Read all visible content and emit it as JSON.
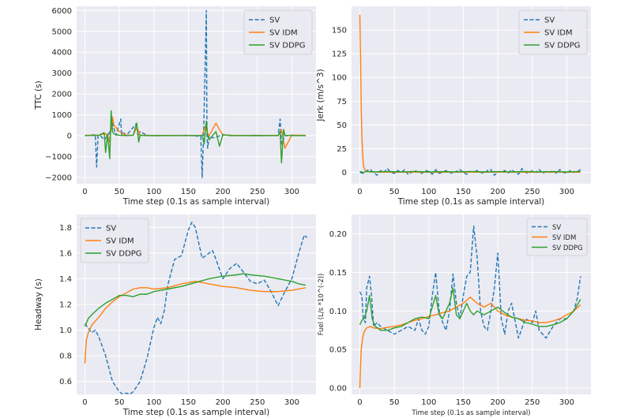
{
  "chart_data": [
    {
      "type": "line",
      "xlabel": "Time step (0.1s as sample interval)",
      "ylabel": "TTC (s)",
      "xlim": [
        -12,
        335
      ],
      "ylim": [
        -2300,
        6200
      ],
      "xticks": [
        0,
        50,
        100,
        150,
        200,
        250,
        300
      ],
      "yticks": [
        -2000,
        -1000,
        0,
        1000,
        2000,
        3000,
        4000,
        5000,
        6000
      ],
      "ytick_labels": [
        "−2000",
        "−1000",
        "0",
        "1000",
        "2000",
        "3000",
        "4000",
        "5000",
        "6000"
      ],
      "grid": true,
      "legend": "top-right",
      "series": [
        {
          "name": "SV",
          "style": "dashed",
          "color": "#1f77b4",
          "x": [
            0,
            15,
            17,
            19,
            22,
            28,
            35,
            40,
            45,
            52,
            53,
            55,
            60,
            75,
            77,
            80,
            90,
            100,
            120,
            150,
            168,
            170,
            172,
            176,
            177,
            178,
            180,
            185,
            200,
            220,
            250,
            280,
            283,
            285,
            290,
            300,
            320
          ],
          "y": [
            0,
            50,
            -1500,
            0,
            30,
            -200,
            100,
            600,
            20,
            800,
            0,
            200,
            10,
            600,
            -50,
            200,
            20,
            10,
            15,
            20,
            -30,
            -2000,
            0,
            6000,
            0,
            -600,
            0,
            -100,
            40,
            10,
            20,
            10,
            800,
            -400,
            0,
            20,
            10
          ]
        },
        {
          "name": "SV IDM",
          "style": "solid",
          "color": "#ff7f0e",
          "x": [
            0,
            20,
            30,
            35,
            38,
            40,
            42,
            45,
            50,
            55,
            60,
            70,
            75,
            78,
            80,
            90,
            100,
            130,
            160,
            170,
            175,
            178,
            180,
            185,
            190,
            195,
            200,
            210,
            250,
            280,
            285,
            290,
            300,
            320
          ],
          "y": [
            20,
            30,
            100,
            -300,
            300,
            900,
            500,
            400,
            200,
            100,
            30,
            20,
            400,
            200,
            30,
            20,
            10,
            15,
            10,
            20,
            500,
            100,
            0,
            300,
            600,
            300,
            50,
            20,
            10,
            20,
            300,
            -600,
            30,
            20
          ]
        },
        {
          "name": "SV DDPG",
          "style": "solid",
          "color": "#2ca02c",
          "x": [
            0,
            20,
            28,
            30,
            33,
            36,
            38,
            40,
            42,
            45,
            50,
            60,
            70,
            75,
            78,
            80,
            90,
            100,
            150,
            165,
            170,
            173,
            176,
            178,
            180,
            185,
            190,
            195,
            200,
            210,
            250,
            280,
            283,
            285,
            288,
            290,
            300,
            320
          ],
          "y": [
            10,
            20,
            150,
            -800,
            100,
            -1100,
            1200,
            200,
            100,
            50,
            20,
            10,
            20,
            600,
            -300,
            20,
            10,
            5,
            10,
            10,
            20,
            -400,
            700,
            0,
            -200,
            10,
            200,
            -500,
            50,
            10,
            5,
            10,
            200,
            -1300,
            300,
            20,
            10,
            5
          ]
        }
      ]
    },
    {
      "type": "line",
      "xlabel": "Time step (0.1s as sample interval)",
      "ylabel": "Jerk (m/s^3)",
      "xlim": [
        -12,
        335
      ],
      "ylim": [
        -12,
        175
      ],
      "xticks": [
        0,
        50,
        100,
        150,
        200,
        250,
        300
      ],
      "yticks": [
        0,
        25,
        50,
        75,
        100,
        125,
        150
      ],
      "grid": true,
      "legend": "top-right",
      "series": [
        {
          "name": "SV",
          "style": "dashed",
          "color": "#1f77b4",
          "x": [
            0,
            5,
            10,
            15,
            20,
            25,
            30,
            35,
            40,
            45,
            50,
            55,
            60,
            65,
            70,
            75,
            80,
            85,
            90,
            95,
            100,
            105,
            110,
            115,
            120,
            125,
            130,
            135,
            140,
            145,
            150,
            155,
            160,
            165,
            170,
            175,
            180,
            185,
            190,
            195,
            200,
            205,
            210,
            215,
            220,
            225,
            230,
            235,
            240,
            245,
            250,
            255,
            260,
            265,
            270,
            275,
            280,
            285,
            290,
            295,
            300,
            305,
            310,
            315,
            320
          ],
          "y": [
            0,
            -1,
            2,
            3,
            0,
            -3,
            2,
            0,
            4,
            0,
            -1,
            2,
            0,
            3,
            -2,
            0,
            2,
            0,
            -1,
            2,
            1,
            -2,
            3,
            -1,
            0,
            2,
            0,
            -1,
            1,
            3,
            0,
            -2,
            1,
            0,
            2,
            0,
            -1,
            2,
            3,
            -3,
            0,
            1,
            2,
            -1,
            3,
            0,
            -2,
            4,
            0,
            -1,
            2,
            0,
            3,
            -1,
            1,
            0,
            2,
            -1,
            3,
            0,
            -1,
            2,
            0,
            1,
            3
          ]
        },
        {
          "name": "SV IDM",
          "style": "solid",
          "color": "#ff7f0e",
          "x": [
            0,
            1,
            2,
            3,
            4,
            5,
            6,
            8,
            10,
            15,
            20,
            50,
            100,
            150,
            200,
            250,
            300,
            320
          ],
          "y": [
            166,
            120,
            70,
            38,
            20,
            10,
            5,
            2,
            1,
            0.5,
            0.3,
            0.2,
            0.2,
            0.2,
            0.2,
            0.2,
            0.2,
            0.2
          ]
        },
        {
          "name": "SV DDPG",
          "style": "solid",
          "color": "#2ca02c",
          "x": [
            0,
            5,
            10,
            20,
            40,
            60,
            80,
            100,
            120,
            140,
            160,
            180,
            200,
            220,
            240,
            260,
            280,
            300,
            320
          ],
          "y": [
            1,
            0,
            1,
            0.5,
            1,
            0.5,
            1,
            0.5,
            0.8,
            0.5,
            1,
            0.5,
            0.8,
            0.5,
            1,
            0.5,
            0.8,
            0.5,
            1
          ]
        }
      ]
    },
    {
      "type": "line",
      "xlabel": "Time step (0.1s as sample interval)",
      "ylabel": "Headway (s)",
      "xlim": [
        -12,
        335
      ],
      "ylim": [
        0.5,
        1.9
      ],
      "xticks": [
        0,
        50,
        100,
        150,
        200,
        250,
        300
      ],
      "yticks": [
        0.6,
        0.8,
        1.0,
        1.2,
        1.4,
        1.6,
        1.8
      ],
      "ytick_labels": [
        "0.6",
        "0.8",
        "1.0",
        "1.2",
        "1.4",
        "1.6",
        "1.8"
      ],
      "grid": true,
      "legend": "top-left",
      "series": [
        {
          "name": "SV",
          "style": "dashed",
          "color": "#1f77b4",
          "x": [
            0,
            10,
            15,
            20,
            30,
            40,
            50,
            55,
            60,
            65,
            70,
            80,
            90,
            100,
            105,
            110,
            115,
            120,
            130,
            140,
            150,
            155,
            160,
            170,
            180,
            185,
            190,
            200,
            210,
            220,
            230,
            240,
            250,
            260,
            270,
            280,
            290,
            300,
            310,
            318,
            322
          ],
          "y": [
            1.05,
            0.98,
            1.0,
            0.95,
            0.8,
            0.6,
            0.52,
            0.5,
            0.51,
            0.5,
            0.52,
            0.6,
            0.78,
            1.02,
            1.1,
            1.05,
            1.15,
            1.35,
            1.55,
            1.58,
            1.78,
            1.84,
            1.8,
            1.56,
            1.6,
            1.62,
            1.55,
            1.4,
            1.48,
            1.52,
            1.45,
            1.38,
            1.36,
            1.39,
            1.3,
            1.19,
            1.3,
            1.4,
            1.6,
            1.74,
            1.72
          ]
        },
        {
          "name": "SV IDM",
          "style": "solid",
          "color": "#ff7f0e",
          "x": [
            0,
            2,
            5,
            10,
            20,
            30,
            40,
            50,
            60,
            70,
            80,
            90,
            100,
            120,
            140,
            160,
            180,
            200,
            220,
            240,
            260,
            280,
            300,
            320
          ],
          "y": [
            0.74,
            0.92,
            0.98,
            1.04,
            1.1,
            1.17,
            1.22,
            1.26,
            1.29,
            1.32,
            1.33,
            1.33,
            1.32,
            1.33,
            1.36,
            1.38,
            1.36,
            1.34,
            1.33,
            1.31,
            1.3,
            1.3,
            1.31,
            1.33
          ]
        },
        {
          "name": "SV DDPG",
          "style": "solid",
          "color": "#2ca02c",
          "x": [
            0,
            5,
            10,
            20,
            30,
            40,
            50,
            60,
            70,
            80,
            90,
            100,
            120,
            140,
            160,
            180,
            200,
            220,
            230,
            240,
            260,
            280,
            300,
            310,
            320
          ],
          "y": [
            1.03,
            1.09,
            1.12,
            1.17,
            1.21,
            1.24,
            1.27,
            1.27,
            1.26,
            1.28,
            1.28,
            1.3,
            1.32,
            1.34,
            1.37,
            1.4,
            1.42,
            1.43,
            1.44,
            1.43,
            1.42,
            1.4,
            1.38,
            1.36,
            1.35
          ]
        }
      ]
    },
    {
      "type": "line",
      "xlabel": "Time step (0.1s as sample interval)",
      "ylabel": "Fuel (L/s *10^(-2))",
      "xlim": [
        -12,
        335
      ],
      "ylim": [
        -0.008,
        0.225
      ],
      "xticks": [
        0,
        50,
        100,
        150,
        200,
        250,
        300
      ],
      "yticks": [
        0.0,
        0.05,
        0.1,
        0.15,
        0.2
      ],
      "ytick_labels": [
        "0.00",
        "0.05",
        "0.10",
        "0.15",
        "0.20"
      ],
      "grid": true,
      "legend": "top-right",
      "series": [
        {
          "name": "SV",
          "style": "dashed",
          "color": "#1f77b4",
          "x": [
            0,
            3,
            5,
            8,
            10,
            14,
            17,
            20,
            25,
            30,
            40,
            50,
            60,
            70,
            80,
            85,
            90,
            95,
            100,
            105,
            110,
            115,
            120,
            125,
            130,
            135,
            140,
            145,
            150,
            155,
            160,
            165,
            170,
            175,
            180,
            185,
            190,
            195,
            200,
            205,
            210,
            215,
            220,
            230,
            240,
            250,
            255,
            260,
            270,
            280,
            290,
            300,
            310,
            315,
            320
          ],
          "y": [
            0.125,
            0.12,
            0.09,
            0.085,
            0.13,
            0.145,
            0.12,
            0.08,
            0.085,
            0.08,
            0.075,
            0.07,
            0.075,
            0.08,
            0.075,
            0.09,
            0.075,
            0.07,
            0.08,
            0.12,
            0.15,
            0.1,
            0.085,
            0.075,
            0.1,
            0.148,
            0.11,
            0.09,
            0.12,
            0.145,
            0.15,
            0.21,
            0.17,
            0.1,
            0.08,
            0.075,
            0.1,
            0.13,
            0.175,
            0.09,
            0.07,
            0.1,
            0.11,
            0.065,
            0.09,
            0.085,
            0.1,
            0.075,
            0.065,
            0.08,
            0.09,
            0.09,
            0.1,
            0.115,
            0.145
          ]
        },
        {
          "name": "SV IDM",
          "style": "solid",
          "color": "#ff7f0e",
          "x": [
            0,
            1,
            2,
            4,
            6,
            8,
            10,
            15,
            20,
            30,
            40,
            50,
            60,
            70,
            80,
            90,
            100,
            110,
            120,
            130,
            140,
            150,
            160,
            170,
            180,
            190,
            200,
            210,
            220,
            230,
            240,
            250,
            260,
            270,
            280,
            290,
            300,
            310,
            320
          ],
          "y": [
            0.0,
            0.03,
            0.05,
            0.065,
            0.072,
            0.076,
            0.078,
            0.08,
            0.078,
            0.077,
            0.079,
            0.08,
            0.082,
            0.085,
            0.088,
            0.09,
            0.093,
            0.095,
            0.098,
            0.1,
            0.105,
            0.11,
            0.118,
            0.11,
            0.105,
            0.11,
            0.1,
            0.095,
            0.092,
            0.09,
            0.088,
            0.087,
            0.085,
            0.085,
            0.087,
            0.09,
            0.095,
            0.1,
            0.108
          ]
        },
        {
          "name": "SV DDPG",
          "style": "solid",
          "color": "#2ca02c",
          "x": [
            0,
            3,
            6,
            10,
            14,
            18,
            22,
            26,
            30,
            40,
            50,
            60,
            70,
            80,
            90,
            100,
            110,
            115,
            120,
            125,
            130,
            135,
            140,
            145,
            150,
            155,
            160,
            165,
            170,
            180,
            190,
            200,
            210,
            220,
            230,
            240,
            250,
            260,
            270,
            280,
            290,
            300,
            310,
            320
          ],
          "y": [
            0.082,
            0.088,
            0.09,
            0.1,
            0.12,
            0.09,
            0.08,
            0.078,
            0.075,
            0.075,
            0.078,
            0.08,
            0.085,
            0.09,
            0.092,
            0.09,
            0.12,
            0.095,
            0.09,
            0.1,
            0.11,
            0.13,
            0.095,
            0.09,
            0.1,
            0.11,
            0.1,
            0.095,
            0.1,
            0.095,
            0.1,
            0.105,
            0.098,
            0.092,
            0.09,
            0.085,
            0.083,
            0.08,
            0.08,
            0.082,
            0.085,
            0.09,
            0.1,
            0.115
          ]
        }
      ]
    }
  ]
}
